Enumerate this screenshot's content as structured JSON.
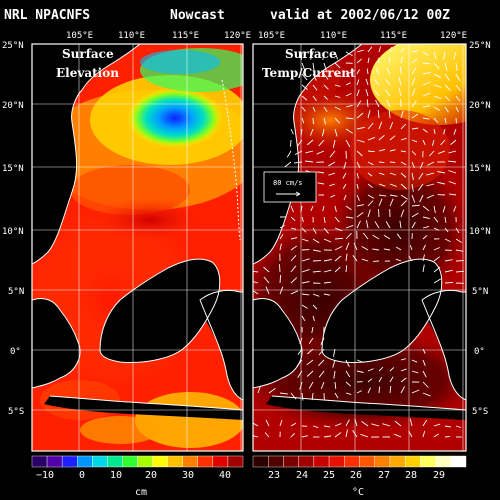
{
  "header": {
    "title_left": "NRL NPACNFS",
    "title_mid": "Nowcast",
    "title_right": "valid at 2002/06/12 00Z"
  },
  "panels": [
    {
      "id": "elevation",
      "label_line1": "Surface",
      "label_line2": "Elevation",
      "lon_labels": [
        "105°E",
        "110°E",
        "115°E",
        "120°E"
      ],
      "lat_labels": [
        "25°N",
        "20°N",
        "15°N",
        "10°N",
        "5°N",
        "0°",
        "5°S"
      ],
      "colorbar": {
        "ticks": [
          "−10",
          "0",
          "10",
          "20",
          "30",
          "40"
        ],
        "unit": "cm"
      }
    },
    {
      "id": "temp",
      "label_line1": "Surface",
      "label_line2": "Temp/Current",
      "lon_labels": [
        "105°E",
        "110°E",
        "115°E",
        "120°E"
      ],
      "lat_labels": [
        "25°N",
        "20°N",
        "15°N",
        "10°N",
        "5°N",
        "0°",
        "5°S"
      ],
      "vector_legend": "80 cm/s",
      "colorbar": {
        "ticks": [
          "23",
          "24",
          "25",
          "26",
          "27",
          "28",
          "29"
        ],
        "unit": "°C"
      }
    }
  ],
  "colors": {
    "land": "#000000",
    "grid": "#ffffff",
    "coast": "#ffffff",
    "elev_scale": [
      "#2a0066",
      "#5200a8",
      "#1f1fff",
      "#0096ff",
      "#00d8e8",
      "#00e890",
      "#30ff30",
      "#a8ff00",
      "#ffff00",
      "#ffc000",
      "#ff8000",
      "#ff3000",
      "#e00000",
      "#a00000"
    ],
    "temp_scale": [
      "#2a0000",
      "#500000",
      "#7a0000",
      "#a00000",
      "#c80000",
      "#e81000",
      "#ff3000",
      "#ff5800",
      "#ff8000",
      "#ffa800",
      "#ffd000",
      "#ffff60",
      "#ffffc0",
      "#ffffff"
    ]
  }
}
